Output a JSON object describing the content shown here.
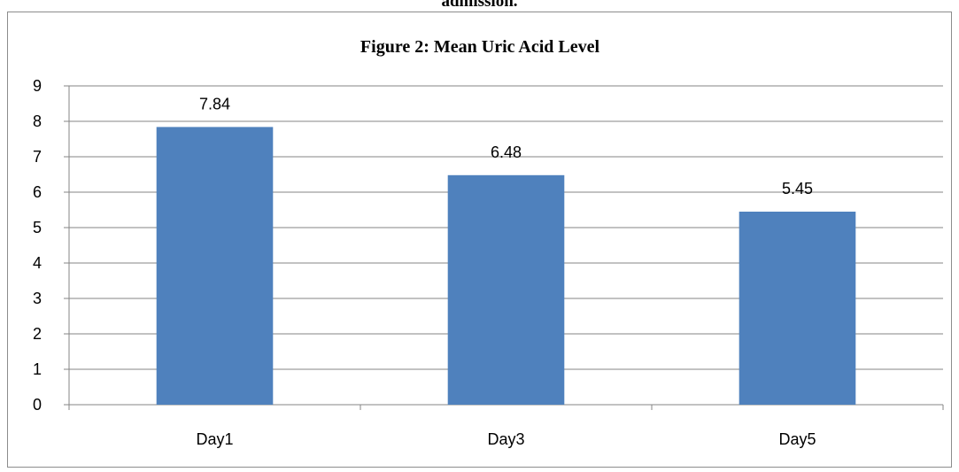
{
  "caption": "admission.",
  "chart_data": {
    "type": "bar",
    "title": "Figure 2: Mean Uric Acid Level",
    "categories": [
      "Day1",
      "Day3",
      "Day5"
    ],
    "values": [
      7.84,
      6.48,
      5.45
    ],
    "data_labels": [
      "7.84",
      "6.48",
      "5.45"
    ],
    "ylim": [
      0,
      9
    ],
    "yticks": [
      0,
      1,
      2,
      3,
      4,
      5,
      6,
      7,
      8,
      9
    ],
    "grid": true,
    "legend": "none",
    "bar_color": "#4F81BD",
    "grid_color": "#868686"
  }
}
